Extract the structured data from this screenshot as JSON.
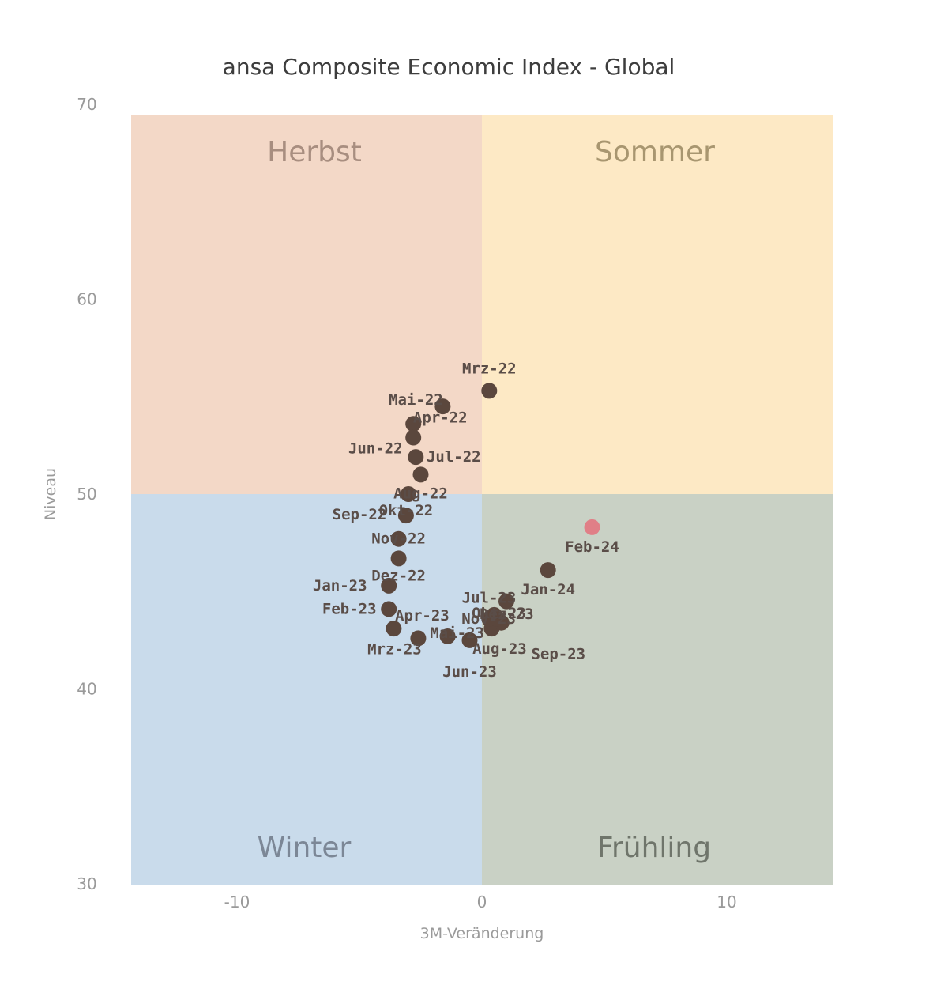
{
  "chart_data": {
    "type": "scatter",
    "title": "ansa Composite Economic Index - Global",
    "xlabel": "3M-Veränderung",
    "ylabel": "Niveau",
    "xlim": [
      -14.5,
      14.5
    ],
    "ylim": [
      30,
      70
    ],
    "x_ticks": [
      "-10",
      "0",
      "10"
    ],
    "y_ticks": [
      "70",
      "60",
      "50",
      "40",
      "30"
    ],
    "grid": false,
    "legend": "none",
    "quadrants": [
      {
        "name": "Herbst",
        "position": "top-left",
        "color": "#f3d8c7",
        "text_color": "#a88e80"
      },
      {
        "name": "Sommer",
        "position": "top-right",
        "color": "#fde9c5",
        "text_color": "#a89670"
      },
      {
        "name": "Winter",
        "position": "bottom-left",
        "color": "#c9dbeb",
        "text_color": "#7c8796"
      },
      {
        "name": "Frühling",
        "position": "bottom-right",
        "color": "#c9d1c5",
        "text_color": "#6f756b"
      }
    ],
    "points": [
      {
        "label": "Mrz-22",
        "x": 0.3,
        "y": 55.3
      },
      {
        "label": "Apr-22",
        "x": -2.8,
        "y": 53.6
      },
      {
        "label": "Mai-22",
        "x": -1.6,
        "y": 54.5
      },
      {
        "label": "Jun-22",
        "x": -2.8,
        "y": 52.9
      },
      {
        "label": "Jul-22",
        "x": -2.7,
        "y": 51.9
      },
      {
        "label": "Aug-22",
        "x": -2.5,
        "y": 51.0
      },
      {
        "label": "Sep-22",
        "x": -3.0,
        "y": 50.0
      },
      {
        "label": "Okt-22",
        "x": -3.1,
        "y": 48.9
      },
      {
        "label": "Nov-22",
        "x": -3.4,
        "y": 47.7
      },
      {
        "label": "Dez-22",
        "x": -3.4,
        "y": 46.7
      },
      {
        "label": "Jan-23",
        "x": -3.8,
        "y": 45.3
      },
      {
        "label": "Feb-23",
        "x": -3.8,
        "y": 44.1
      },
      {
        "label": "Mrz-23",
        "x": -2.6,
        "y": 42.6
      },
      {
        "label": "Apr-23",
        "x": -3.6,
        "y": 43.1
      },
      {
        "label": "Mai-23",
        "x": -1.4,
        "y": 42.7
      },
      {
        "label": "Jun-23",
        "x": -0.5,
        "y": 42.5
      },
      {
        "label": "Jul-23",
        "x": 1.0,
        "y": 44.5
      },
      {
        "label": "Aug-23",
        "x": 0.4,
        "y": 43.1
      },
      {
        "label": "Sep-23",
        "x": 0.8,
        "y": 43.4
      },
      {
        "label": "Okt-23",
        "x": 0.5,
        "y": 43.8
      },
      {
        "label": "Nov-23",
        "x": 0.6,
        "y": 43.6
      },
      {
        "label": "Dez-23",
        "x": 0.3,
        "y": 43.6
      },
      {
        "label": "Jan-24",
        "x": 2.7,
        "y": 46.1
      },
      {
        "label": "Feb-24",
        "x": 4.5,
        "y": 48.3,
        "highlight": true
      }
    ],
    "point_color": "#5b473d",
    "highlight_color": "#e07f87"
  }
}
